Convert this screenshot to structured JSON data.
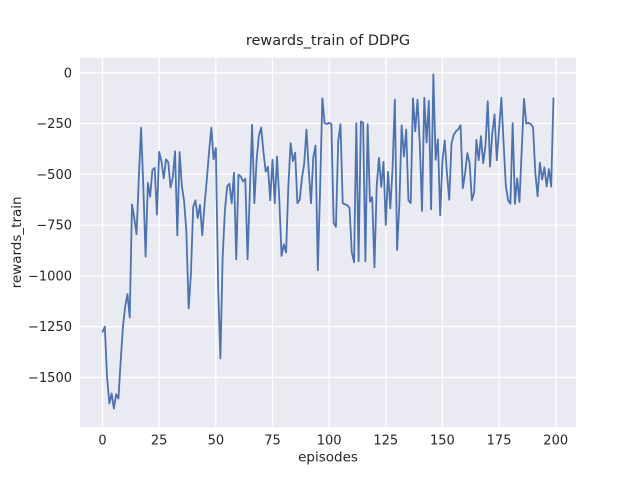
{
  "colors": {
    "figure_background": "#ffffff",
    "plot_background": "#eaeaf2",
    "gridline": "#ffffff",
    "line": "#4c72b0",
    "text": "#262626"
  },
  "chart_data": {
    "type": "line",
    "title": "rewards_train of DDPG",
    "xlabel": "episodes",
    "ylabel": "rewards_train",
    "grid": true,
    "legend_position": "none",
    "x_ticks": [
      0,
      25,
      50,
      75,
      100,
      125,
      150,
      175,
      200
    ],
    "y_ticks": [
      0,
      -250,
      -500,
      -750,
      -1000,
      -1250,
      -1500
    ],
    "xlim": [
      -9.95,
      208.95
    ],
    "ylim": [
      -1745,
      75
    ],
    "series": [
      {
        "name": "rewards_train",
        "color": "#4c72b0",
        "x_start": 0,
        "x_step": 1,
        "values": [
          -1275,
          -1250,
          -1500,
          -1628,
          -1579,
          -1653,
          -1583,
          -1604,
          -1420,
          -1250,
          -1150,
          -1090,
          -1205,
          -648,
          -715,
          -795,
          -520,
          -270,
          -562,
          -905,
          -542,
          -610,
          -478,
          -468,
          -698,
          -390,
          -436,
          -520,
          -426,
          -440,
          -565,
          -515,
          -386,
          -800,
          -390,
          -558,
          -632,
          -782,
          -1160,
          -992,
          -660,
          -628,
          -715,
          -650,
          -800,
          -652,
          -528,
          -390,
          -270,
          -425,
          -370,
          -1045,
          -1406,
          -910,
          -678,
          -560,
          -546,
          -642,
          -492,
          -918,
          -502,
          -510,
          -535,
          -522,
          -918,
          -588,
          -256,
          -642,
          -428,
          -310,
          -270,
          -388,
          -486,
          -462,
          -628,
          -428,
          -642,
          -412,
          -620,
          -902,
          -845,
          -885,
          -558,
          -346,
          -434,
          -394,
          -642,
          -626,
          -518,
          -448,
          -280,
          -478,
          -642,
          -418,
          -358,
          -972,
          -578,
          -125,
          -248,
          -252,
          -246,
          -253,
          -740,
          -758,
          -338,
          -253,
          -642,
          -648,
          -652,
          -665,
          -885,
          -933,
          -248,
          -928,
          -240,
          -246,
          -928,
          -253,
          -635,
          -612,
          -958,
          -556,
          -418,
          -562,
          -438,
          -750,
          -488,
          -668,
          -468,
          -132,
          -872,
          -645,
          -258,
          -412,
          -280,
          -628,
          -642,
          -125,
          -288,
          -132,
          -348,
          -680,
          -123,
          -343,
          -138,
          -672,
          -8,
          -428,
          -328,
          -702,
          -435,
          -333,
          -495,
          -625,
          -348,
          -305,
          -288,
          -278,
          -258,
          -568,
          -495,
          -395,
          -445,
          -628,
          -588,
          -330,
          -430,
          -312,
          -445,
          -358,
          -140,
          -462,
          -298,
          -205,
          -430,
          -278,
          -122,
          -348,
          -558,
          -628,
          -645,
          -248,
          -645,
          -520,
          -636,
          -378,
          -128,
          -250,
          -246,
          -253,
          -268,
          -492,
          -608,
          -442,
          -525,
          -466,
          -560,
          -474,
          -560,
          -125
        ]
      }
    ]
  }
}
